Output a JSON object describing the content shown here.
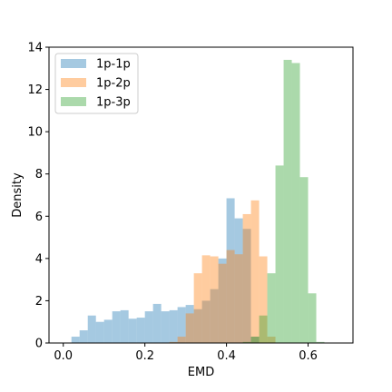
{
  "chart_data": {
    "type": "histogram",
    "xlabel": "EMD",
    "ylabel": "Density",
    "xlim": [
      -0.035,
      0.71
    ],
    "ylim": [
      0,
      14
    ],
    "x_ticks": [
      "0.0",
      "0.2",
      "0.4",
      "0.6"
    ],
    "x_tick_values": [
      0.0,
      0.2,
      0.4,
      0.6
    ],
    "y_ticks": [
      "0",
      "2",
      "4",
      "6",
      "8",
      "10",
      "12",
      "14"
    ],
    "y_tick_values": [
      0,
      2,
      4,
      6,
      8,
      10,
      12,
      14
    ],
    "legend_position": "top-left",
    "bin_width": 0.02,
    "series": [
      {
        "name": "1p-1p",
        "color": "#1f77b4",
        "opacity": 0.4,
        "bin_start": 0.02,
        "values": [
          0.3,
          0.6,
          1.3,
          1.0,
          1.1,
          1.5,
          1.55,
          1.15,
          1.2,
          1.5,
          1.85,
          1.5,
          1.55,
          1.7,
          1.8,
          1.6,
          2.0,
          2.55,
          4.0,
          6.85,
          5.9,
          5.4,
          0.3
        ]
      },
      {
        "name": "1p-2p",
        "color": "#ff7f0e",
        "opacity": 0.4,
        "bin_start": 0.26,
        "values": [
          0.05,
          0.3,
          1.4,
          3.3,
          4.15,
          4.1,
          3.75,
          4.4,
          4.2,
          6.1,
          6.75,
          4.1,
          0.3
        ]
      },
      {
        "name": "1p-3p",
        "color": "#2ca02c",
        "opacity": 0.4,
        "bin_start": 0.44,
        "values": [
          0.05,
          0.3,
          1.3,
          3.3,
          8.4,
          13.4,
          13.25,
          7.85,
          2.35,
          0.05
        ]
      }
    ]
  }
}
